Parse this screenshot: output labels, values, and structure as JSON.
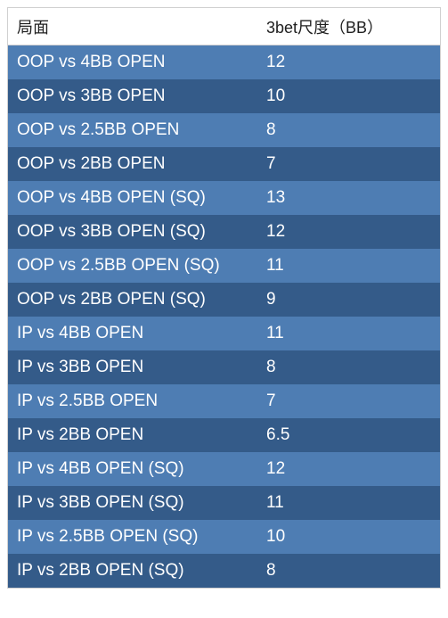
{
  "table": {
    "header_bg": "#ffffff",
    "header_text_color": "#202020",
    "row_text_color": "#ffffff",
    "row_color_odd": "#4e7db3",
    "row_color_even": "#345b89",
    "columns": [
      "局面",
      "3bet尺度（BB）"
    ],
    "rows": [
      [
        "OOP vs 4BB OPEN",
        "12"
      ],
      [
        "OOP vs 3BB OPEN",
        "10"
      ],
      [
        "OOP vs  2.5BB OPEN",
        "8"
      ],
      [
        "OOP vs 2BB OPEN",
        "7"
      ],
      [
        "OOP vs 4BB OPEN (SQ)",
        "13"
      ],
      [
        "OOP vs 3BB OPEN (SQ)",
        "12"
      ],
      [
        "OOP vs 2.5BB OPEN (SQ)",
        "11"
      ],
      [
        "OOP vs 2BB OPEN (SQ)",
        "9"
      ],
      [
        "IP vs 4BB OPEN",
        "11"
      ],
      [
        "IP vs 3BB OPEN",
        "8"
      ],
      [
        "IP vs 2.5BB OPEN",
        "7"
      ],
      [
        "IP vs 2BB OPEN",
        "6.5"
      ],
      [
        "IP vs 4BB OPEN (SQ)",
        "12"
      ],
      [
        "IP vs 3BB OPEN (SQ)",
        "11"
      ],
      [
        "IP vs 2.5BB OPEN (SQ)",
        "10"
      ],
      [
        "IP vs 2BB OPEN (SQ)",
        "8"
      ]
    ]
  }
}
